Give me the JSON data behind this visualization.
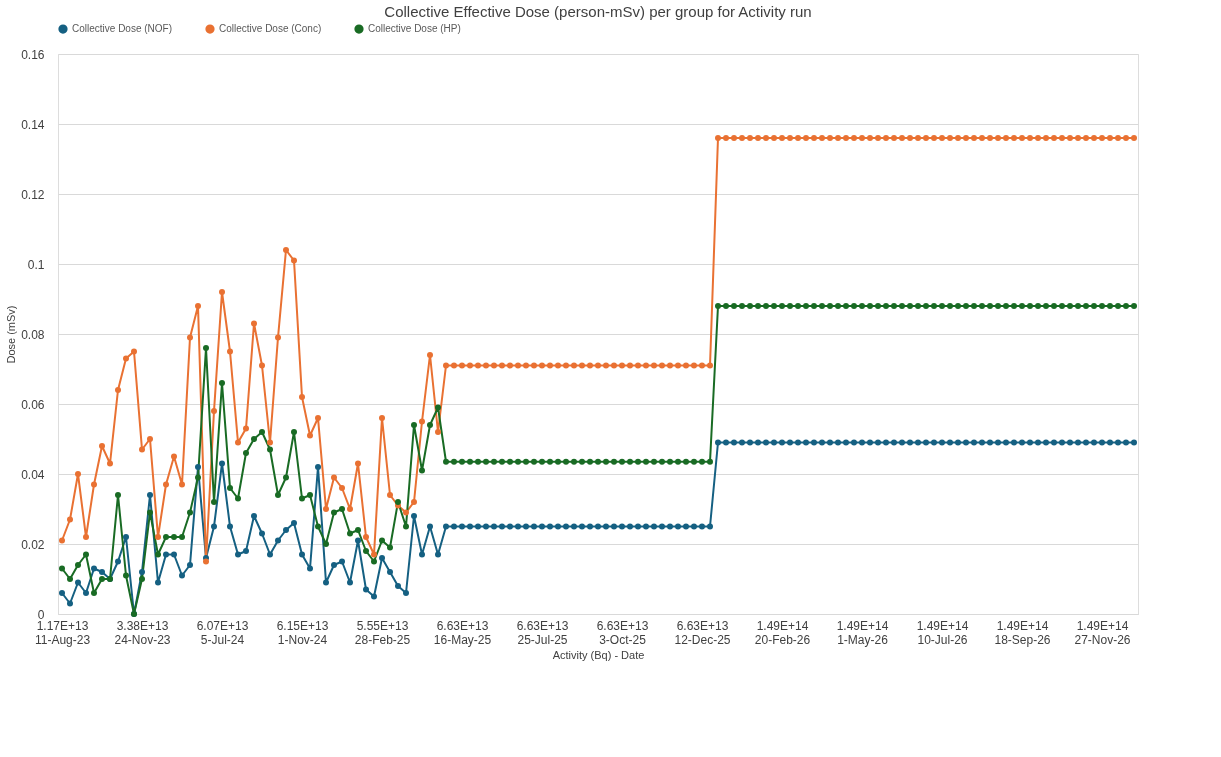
{
  "chart_data": {
    "type": "line",
    "title": "Collective Effective Dose (person-mSv) per group for Activity run",
    "xlabel": "Activity (Bq) - Date",
    "ylabel": "Dose (mSv)",
    "categories": [
      "1.17E+13\n11-Aug-23",
      null,
      null,
      null,
      null,
      null,
      null,
      null,
      null,
      null,
      "3.38E+13\n24-Nov-23",
      null,
      null,
      null,
      null,
      null,
      null,
      null,
      null,
      null,
      "6.07E+13\n5-Jul-24",
      null,
      null,
      null,
      null,
      null,
      null,
      null,
      null,
      null,
      "6.15E+13\n1-Nov-24",
      null,
      null,
      null,
      null,
      null,
      null,
      null,
      null,
      null,
      "5.55E+13\n28-Feb-25",
      null,
      null,
      null,
      null,
      null,
      null,
      null,
      null,
      null,
      "6.63E+13\n16-May-25",
      null,
      null,
      null,
      null,
      null,
      null,
      null,
      null,
      null,
      "6.63E+13\n25-Jul-25",
      null,
      null,
      null,
      null,
      null,
      null,
      null,
      null,
      null,
      "6.63E+13\n3-Oct-25",
      null,
      null,
      null,
      null,
      null,
      null,
      null,
      null,
      null,
      "6.63E+13\n12-Dec-25",
      null,
      null,
      null,
      null,
      null,
      null,
      null,
      null,
      null,
      "1.49E+14\n20-Feb-26",
      null,
      null,
      null,
      null,
      null,
      null,
      null,
      null,
      null,
      "1.49E+14\n1-May-26",
      null,
      null,
      null,
      null,
      null,
      null,
      null,
      null,
      null,
      "1.49E+14\n10-Jul-26",
      null,
      null,
      null,
      null,
      null,
      null,
      null,
      null,
      null,
      "1.49E+14\n18-Sep-26",
      null,
      null,
      null,
      null,
      null,
      null,
      null,
      null,
      null,
      "1.49E+14\n27-Nov-26",
      null,
      null,
      null,
      null
    ],
    "series": [
      {
        "name": "Collective Dose (NOF)",
        "color": "#156082",
        "values": [
          0.006,
          0.003,
          0.009,
          0.006,
          0.013,
          0.012,
          0.01,
          0.015,
          0.022,
          0.0,
          0.012,
          0.034,
          0.009,
          0.017,
          0.017,
          0.011,
          0.014,
          0.042,
          0.016,
          0.025,
          0.043,
          0.025,
          0.017,
          0.018,
          0.028,
          0.023,
          0.017,
          0.021,
          0.024,
          0.026,
          0.017,
          0.013,
          0.042,
          0.009,
          0.014,
          0.015,
          0.009,
          0.021,
          0.007,
          0.005,
          0.016,
          0.012,
          0.008,
          0.006,
          0.028,
          0.017,
          0.025,
          0.017,
          0.025,
          0.025,
          0.025,
          0.025,
          0.025,
          0.025,
          0.025,
          0.025,
          0.025,
          0.025,
          0.025,
          0.025,
          0.025,
          0.025,
          0.025,
          0.025,
          0.025,
          0.025,
          0.025,
          0.025,
          0.025,
          0.025,
          0.025,
          0.025,
          0.025,
          0.025,
          0.025,
          0.025,
          0.025,
          0.025,
          0.025,
          0.025,
          0.025,
          0.025,
          0.049,
          0.049,
          0.049,
          0.049,
          0.049,
          0.049,
          0.049,
          0.049,
          0.049,
          0.049,
          0.049,
          0.049,
          0.049,
          0.049,
          0.049,
          0.049,
          0.049,
          0.049,
          0.049,
          0.049,
          0.049,
          0.049,
          0.049,
          0.049,
          0.049,
          0.049,
          0.049,
          0.049,
          0.049,
          0.049,
          0.049,
          0.049,
          0.049,
          0.049,
          0.049,
          0.049,
          0.049,
          0.049,
          0.049,
          0.049,
          0.049,
          0.049,
          0.049,
          0.049,
          0.049,
          0.049,
          0.049,
          0.049,
          0.049,
          0.049,
          0.049,
          0.049,
          0.049
        ]
      },
      {
        "name": "Collective Dose (Conc)",
        "color": "#e97132",
        "values": [
          0.021,
          0.027,
          0.04,
          0.022,
          0.037,
          0.048,
          0.043,
          0.064,
          0.073,
          0.075,
          0.047,
          0.05,
          0.022,
          0.037,
          0.045,
          0.037,
          0.079,
          0.088,
          0.015,
          0.058,
          0.092,
          0.075,
          0.049,
          0.053,
          0.083,
          0.071,
          0.049,
          0.079,
          0.104,
          0.101,
          0.062,
          0.051,
          0.056,
          0.03,
          0.039,
          0.036,
          0.03,
          0.043,
          0.022,
          0.017,
          0.056,
          0.034,
          0.031,
          0.029,
          0.032,
          0.055,
          0.074,
          0.052,
          0.071,
          0.071,
          0.071,
          0.071,
          0.071,
          0.071,
          0.071,
          0.071,
          0.071,
          0.071,
          0.071,
          0.071,
          0.071,
          0.071,
          0.071,
          0.071,
          0.071,
          0.071,
          0.071,
          0.071,
          0.071,
          0.071,
          0.071,
          0.071,
          0.071,
          0.071,
          0.071,
          0.071,
          0.071,
          0.071,
          0.071,
          0.071,
          0.071,
          0.071,
          0.136,
          0.136,
          0.136,
          0.136,
          0.136,
          0.136,
          0.136,
          0.136,
          0.136,
          0.136,
          0.136,
          0.136,
          0.136,
          0.136,
          0.136,
          0.136,
          0.136,
          0.136,
          0.136,
          0.136,
          0.136,
          0.136,
          0.136,
          0.136,
          0.136,
          0.136,
          0.136,
          0.136,
          0.136,
          0.136,
          0.136,
          0.136,
          0.136,
          0.136,
          0.136,
          0.136,
          0.136,
          0.136,
          0.136,
          0.136,
          0.136,
          0.136,
          0.136,
          0.136,
          0.136,
          0.136,
          0.136,
          0.136,
          0.136,
          0.136,
          0.136,
          0.136,
          0.136
        ]
      },
      {
        "name": "Collective Dose (HP)",
        "color": "#196b24",
        "values": [
          0.013,
          0.01,
          0.014,
          0.017,
          0.006,
          0.01,
          0.01,
          0.034,
          0.011,
          0.0,
          0.01,
          0.029,
          0.017,
          0.022,
          0.022,
          0.022,
          0.029,
          0.039,
          0.076,
          0.032,
          0.066,
          0.036,
          0.033,
          0.046,
          0.05,
          0.052,
          0.047,
          0.034,
          0.039,
          0.052,
          0.033,
          0.034,
          0.025,
          0.02,
          0.029,
          0.03,
          0.023,
          0.024,
          0.018,
          0.015,
          0.021,
          0.019,
          0.032,
          0.025,
          0.054,
          0.041,
          0.054,
          0.059,
          0.0435,
          0.0435,
          0.0435,
          0.0435,
          0.0435,
          0.0435,
          0.0435,
          0.0435,
          0.0435,
          0.0435,
          0.0435,
          0.0435,
          0.0435,
          0.0435,
          0.0435,
          0.0435,
          0.0435,
          0.0435,
          0.0435,
          0.0435,
          0.0435,
          0.0435,
          0.0435,
          0.0435,
          0.0435,
          0.0435,
          0.0435,
          0.0435,
          0.0435,
          0.0435,
          0.0435,
          0.0435,
          0.0435,
          0.0435,
          0.088,
          0.088,
          0.088,
          0.088,
          0.088,
          0.088,
          0.088,
          0.088,
          0.088,
          0.088,
          0.088,
          0.088,
          0.088,
          0.088,
          0.088,
          0.088,
          0.088,
          0.088,
          0.088,
          0.088,
          0.088,
          0.088,
          0.088,
          0.088,
          0.088,
          0.088,
          0.088,
          0.088,
          0.088,
          0.088,
          0.088,
          0.088,
          0.088,
          0.088,
          0.088,
          0.088,
          0.088,
          0.088,
          0.088,
          0.088,
          0.088,
          0.088,
          0.088,
          0.088,
          0.088,
          0.088,
          0.088,
          0.088,
          0.088,
          0.088,
          0.088,
          0.088,
          0.088
        ]
      }
    ],
    "ylim": [
      0,
      0.16
    ],
    "yticks": [
      0,
      0.02,
      0.04,
      0.06,
      0.08,
      0.1,
      0.12,
      0.14,
      0.16
    ],
    "grid": "y",
    "legend": "top",
    "marker": "circle",
    "line_style": "solid"
  }
}
